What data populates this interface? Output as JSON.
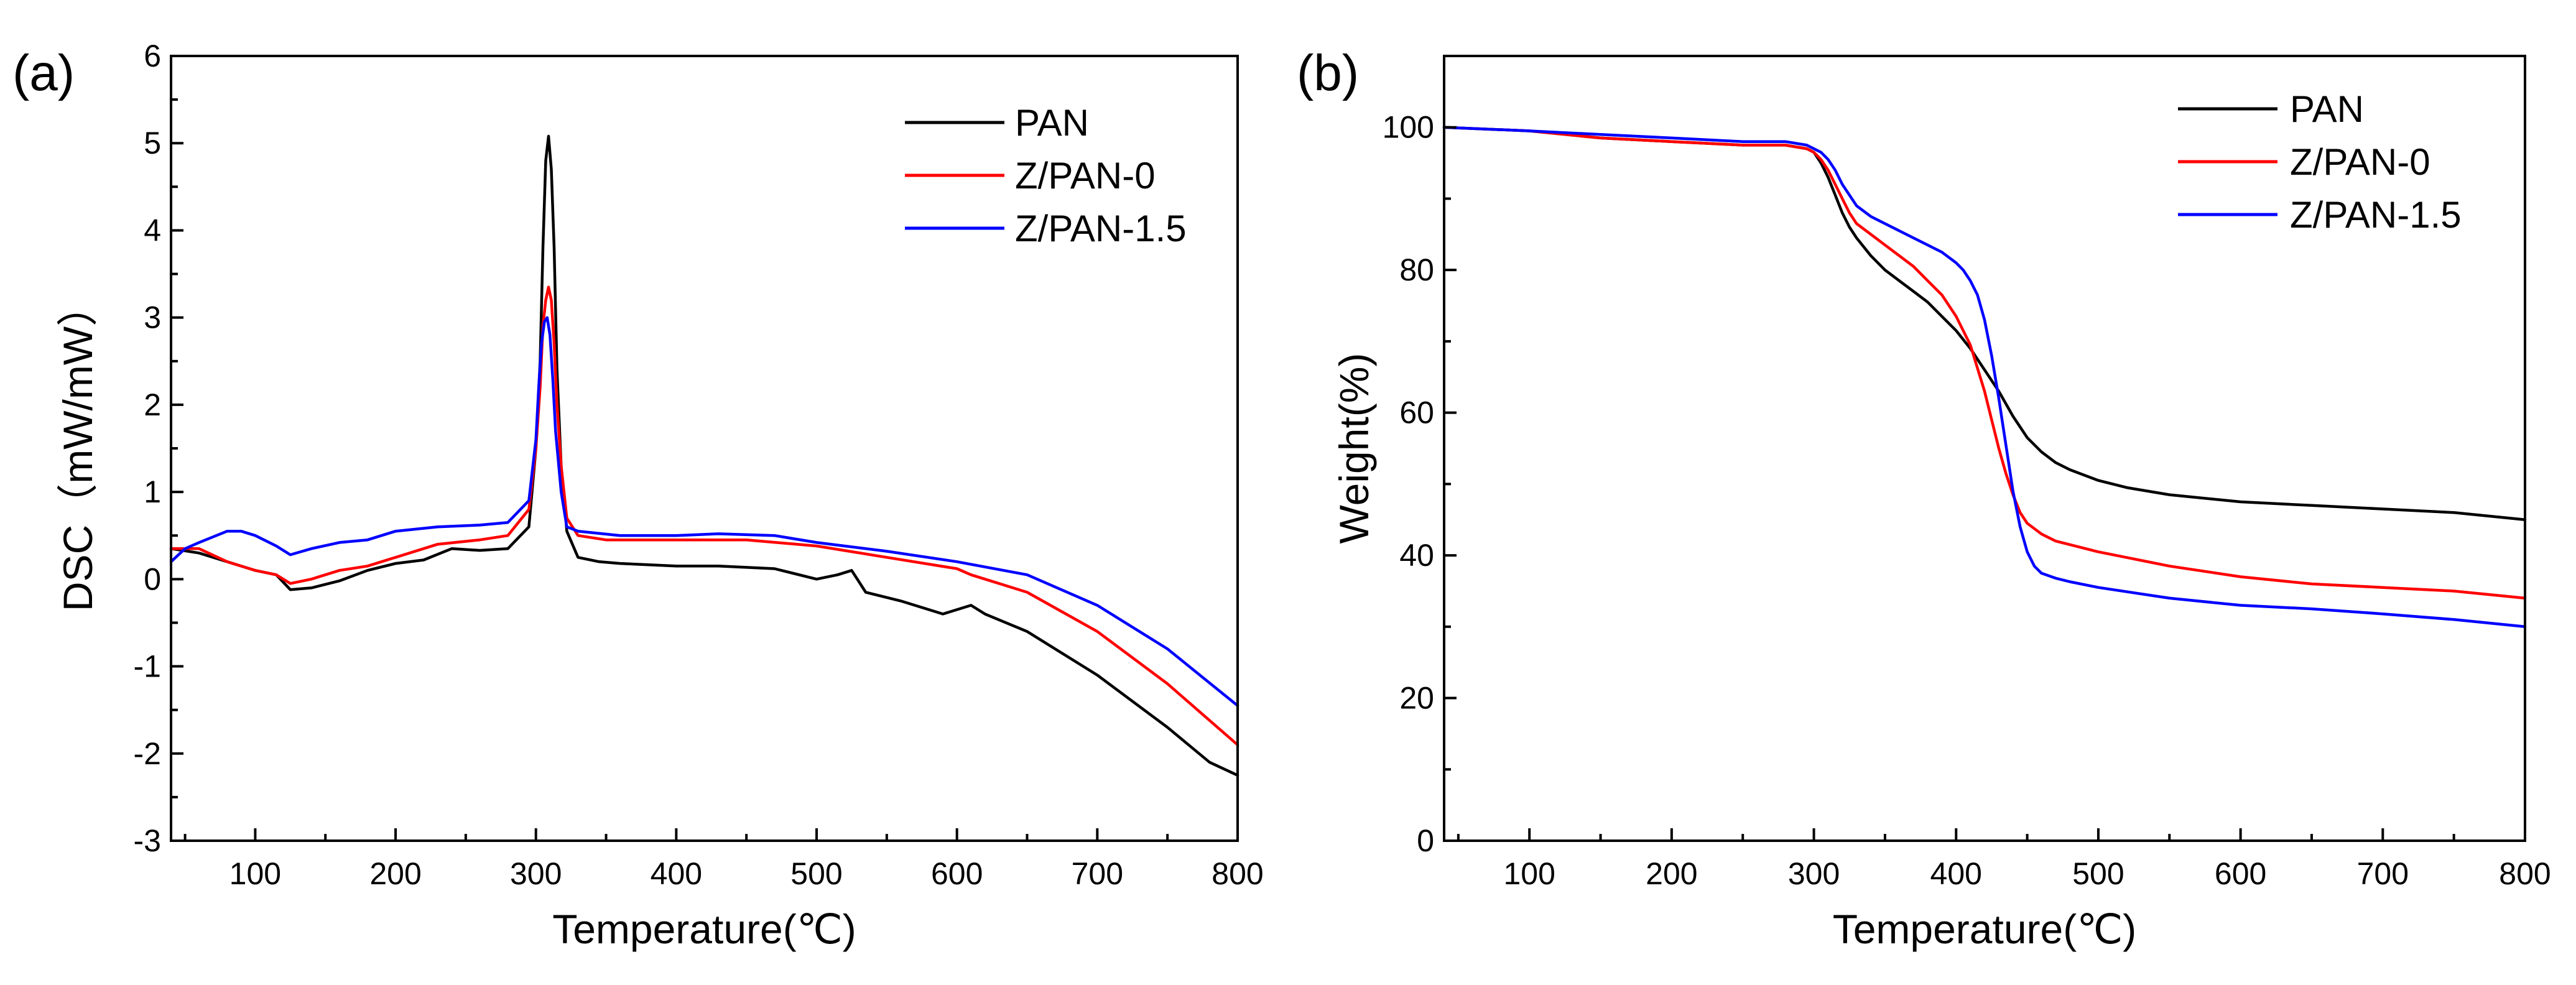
{
  "chart_data": [
    {
      "panel": "(a)",
      "type": "line",
      "title": "",
      "xlabel": "Temperature(℃)",
      "ylabel": "DSC（mW/mW）",
      "xlim": [
        40,
        800
      ],
      "ylim": [
        -3,
        6
      ],
      "xticks": [
        100,
        200,
        300,
        400,
        500,
        600,
        700,
        800
      ],
      "yticks": [
        -3,
        -2,
        -1,
        0,
        1,
        2,
        3,
        4,
        5,
        6
      ],
      "legend_position": "top-right",
      "series": [
        {
          "name": "PAN",
          "color": "#000000",
          "x": [
            40,
            60,
            80,
            100,
            115,
            125,
            140,
            160,
            180,
            200,
            220,
            240,
            260,
            280,
            295,
            300,
            303,
            305,
            307,
            309,
            311,
            313,
            315,
            318,
            322,
            330,
            345,
            360,
            400,
            430,
            470,
            500,
            515,
            525,
            535,
            560,
            590,
            600,
            610,
            620,
            650,
            700,
            750,
            780,
            800
          ],
          "y": [
            0.35,
            0.3,
            0.2,
            0.1,
            0.05,
            -0.12,
            -0.1,
            -0.02,
            0.1,
            0.18,
            0.22,
            0.35,
            0.33,
            0.35,
            0.6,
            1.5,
            2.5,
            3.8,
            4.8,
            5.08,
            4.7,
            3.8,
            2.4,
            1.3,
            0.55,
            0.25,
            0.2,
            0.18,
            0.15,
            0.15,
            0.12,
            0.0,
            0.05,
            0.1,
            -0.15,
            -0.25,
            -0.4,
            -0.35,
            -0.3,
            -0.4,
            -0.6,
            -1.1,
            -1.7,
            -2.1,
            -2.25
          ]
        },
        {
          "name": "Z/PAN-0",
          "color": "#ff0000",
          "x": [
            40,
            60,
            80,
            100,
            115,
            125,
            140,
            160,
            180,
            200,
            230,
            260,
            280,
            295,
            300,
            303,
            305,
            307,
            309,
            311,
            313,
            315,
            318,
            322,
            330,
            350,
            400,
            450,
            500,
            550,
            600,
            610,
            620,
            650,
            700,
            750,
            800
          ],
          "y": [
            0.35,
            0.35,
            0.2,
            0.1,
            0.05,
            -0.05,
            0.0,
            0.1,
            0.15,
            0.25,
            0.4,
            0.45,
            0.5,
            0.8,
            1.5,
            2.2,
            2.9,
            3.2,
            3.35,
            3.2,
            2.7,
            2.0,
            1.3,
            0.7,
            0.5,
            0.45,
            0.45,
            0.45,
            0.38,
            0.25,
            0.12,
            0.05,
            0.0,
            -0.15,
            -0.6,
            -1.2,
            -1.9
          ]
        },
        {
          "name": "Z/PAN-1.5",
          "color": "#0000ff",
          "x": [
            40,
            50,
            60,
            80,
            90,
            100,
            115,
            125,
            140,
            160,
            180,
            200,
            230,
            260,
            280,
            295,
            300,
            302,
            304,
            306,
            308,
            310,
            312,
            314,
            318,
            322,
            330,
            360,
            400,
            430,
            470,
            500,
            550,
            600,
            650,
            700,
            750,
            800
          ],
          "y": [
            0.2,
            0.35,
            0.42,
            0.55,
            0.55,
            0.5,
            0.38,
            0.28,
            0.35,
            0.42,
            0.45,
            0.55,
            0.6,
            0.62,
            0.65,
            0.9,
            1.6,
            2.2,
            2.7,
            2.95,
            3.0,
            2.8,
            2.3,
            1.7,
            1.0,
            0.6,
            0.55,
            0.5,
            0.5,
            0.52,
            0.5,
            0.42,
            0.32,
            0.2,
            0.05,
            -0.3,
            -0.8,
            -1.45
          ]
        }
      ]
    },
    {
      "panel": "(b)",
      "type": "line",
      "title": "",
      "xlabel": "Temperature(℃)",
      "ylabel": "Weight(%)",
      "xlim": [
        40,
        800
      ],
      "ylim": [
        0,
        110
      ],
      "xticks": [
        100,
        200,
        300,
        400,
        500,
        600,
        700,
        800
      ],
      "yticks": [
        0,
        20,
        40,
        60,
        80,
        100
      ],
      "legend_position": "top-right",
      "series": [
        {
          "name": "PAN",
          "color": "#000000",
          "x": [
            40,
            100,
            150,
            200,
            250,
            280,
            295,
            300,
            305,
            310,
            315,
            320,
            325,
            330,
            340,
            350,
            360,
            370,
            380,
            390,
            400,
            410,
            420,
            430,
            440,
            450,
            460,
            470,
            480,
            500,
            520,
            550,
            600,
            650,
            700,
            750,
            800
          ],
          "y": [
            100,
            99.5,
            98.5,
            98.0,
            97.5,
            97.5,
            97.0,
            96.5,
            95.0,
            93.0,
            90.5,
            88.0,
            86.0,
            84.5,
            82.0,
            80.0,
            78.5,
            77.0,
            75.5,
            73.5,
            71.5,
            69.0,
            66.0,
            63.0,
            59.5,
            56.5,
            54.5,
            53.0,
            52.0,
            50.5,
            49.5,
            48.5,
            47.5,
            47.0,
            46.5,
            46.0,
            45.0
          ]
        },
        {
          "name": "Z/PAN-0",
          "color": "#ff0000",
          "x": [
            40,
            100,
            150,
            200,
            250,
            280,
            295,
            300,
            305,
            310,
            315,
            320,
            325,
            330,
            340,
            350,
            360,
            370,
            380,
            390,
            400,
            410,
            420,
            425,
            430,
            435,
            440,
            445,
            450,
            460,
            470,
            500,
            550,
            600,
            650,
            700,
            750,
            800
          ],
          "y": [
            100,
            99.5,
            98.5,
            98.0,
            97.5,
            97.5,
            97.0,
            96.5,
            95.5,
            94.0,
            92.0,
            90.0,
            88.0,
            86.5,
            85.0,
            83.5,
            82.0,
            80.5,
            78.5,
            76.5,
            73.5,
            69.5,
            63.0,
            59.0,
            55.0,
            51.5,
            48.5,
            46.0,
            44.5,
            43.0,
            42.0,
            40.5,
            38.5,
            37.0,
            36.0,
            35.5,
            35.0,
            34.0
          ]
        },
        {
          "name": "Z/PAN-1.5",
          "color": "#0000ff",
          "x": [
            40,
            100,
            150,
            200,
            250,
            280,
            295,
            300,
            305,
            310,
            315,
            320,
            325,
            330,
            340,
            350,
            360,
            370,
            380,
            390,
            400,
            405,
            410,
            415,
            420,
            425,
            430,
            435,
            440,
            445,
            450,
            455,
            460,
            470,
            480,
            500,
            550,
            600,
            650,
            700,
            750,
            800
          ],
          "y": [
            100,
            99.5,
            99.0,
            98.5,
            98.0,
            98.0,
            97.5,
            97.0,
            96.5,
            95.5,
            94.0,
            92.0,
            90.5,
            89.0,
            87.5,
            86.5,
            85.5,
            84.5,
            83.5,
            82.5,
            81.0,
            80.0,
            78.5,
            76.5,
            73.0,
            68.0,
            62.0,
            55.5,
            49.0,
            44.0,
            40.5,
            38.5,
            37.5,
            36.8,
            36.3,
            35.5,
            34.0,
            33.0,
            32.5,
            31.8,
            31.0,
            30.0
          ]
        }
      ]
    }
  ]
}
